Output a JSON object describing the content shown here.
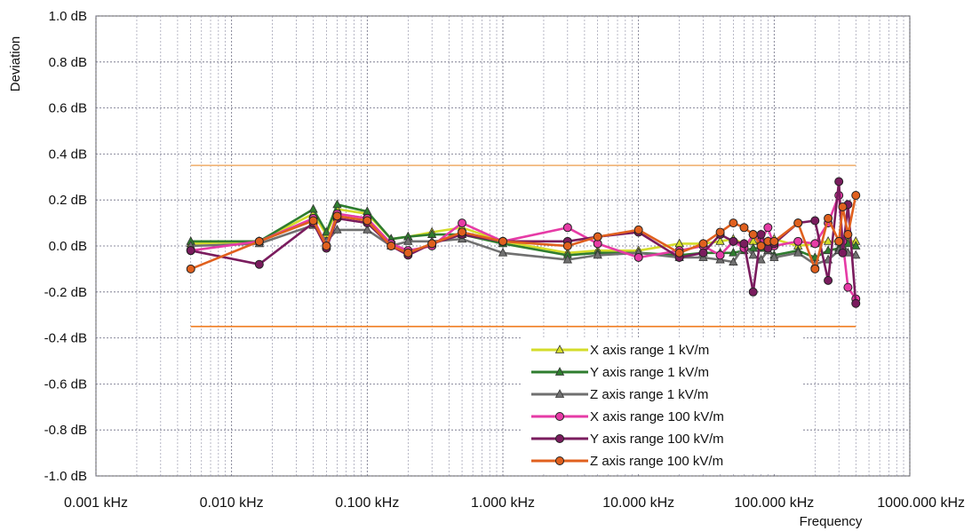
{
  "chart_data": {
    "type": "line",
    "title": "",
    "xlabel": "Frequency",
    "ylabel": "Deviation",
    "x_scale": "log",
    "xlim": [
      0.001,
      1000
    ],
    "ylim": [
      -1.0,
      1.0
    ],
    "x_ticks": [
      {
        "value": 0.001,
        "label": "0.001 kHz"
      },
      {
        "value": 0.01,
        "label": "0.010 kHz"
      },
      {
        "value": 0.1,
        "label": "0.100 kHz"
      },
      {
        "value": 1,
        "label": "1.000 kHz"
      },
      {
        "value": 10,
        "label": "10.000 kHz"
      },
      {
        "value": 100,
        "label": "100.000 kHz"
      },
      {
        "value": 1000,
        "label": "1000.000 kHz"
      }
    ],
    "y_ticks": [
      {
        "value": 1.0,
        "label": "1.0 dB"
      },
      {
        "value": 0.8,
        "label": "0.8 dB"
      },
      {
        "value": 0.6,
        "label": "0.6 dB"
      },
      {
        "value": 0.4,
        "label": "0.4 dB"
      },
      {
        "value": 0.2,
        "label": "0.2 dB"
      },
      {
        "value": 0.0,
        "label": "0.0 dB"
      },
      {
        "value": -0.2,
        "label": "-0.2 dB"
      },
      {
        "value": -0.4,
        "label": "-0.4 dB"
      },
      {
        "value": -0.6,
        "label": "-0.6 dB"
      },
      {
        "value": -0.8,
        "label": "-0.8 dB"
      },
      {
        "value": -1.0,
        "label": "-1.0 dB"
      }
    ],
    "grid": true,
    "legend_position": "bottom-right",
    "limit_lines": [
      {
        "y": 0.35,
        "x": [
          0.005,
          400
        ],
        "color": "#f0b070"
      },
      {
        "y": -0.35,
        "x": [
          0.005,
          400
        ],
        "color": "#f07a1e"
      }
    ],
    "series": [
      {
        "name": "X axis range 1 kV/m",
        "color": "#d4dc2a",
        "marker": "triangle",
        "x": [
          0.005,
          0.016,
          0.04,
          0.05,
          0.06,
          0.1,
          0.15,
          0.2,
          0.3,
          0.5,
          1,
          3,
          5,
          10,
          20,
          30,
          40,
          50,
          60,
          70,
          80,
          90,
          100,
          150,
          200,
          250,
          300,
          320,
          350,
          400
        ],
        "y": [
          0.01,
          0.02,
          0.14,
          0.05,
          0.16,
          0.14,
          0.03,
          0.04,
          0.06,
          0.08,
          0.02,
          -0.03,
          -0.02,
          -0.02,
          0.01,
          0.01,
          0.02,
          0.03,
          0.01,
          0.02,
          0.0,
          0.02,
          0.03,
          0.0,
          0.01,
          0.02,
          0.02,
          0.03,
          0.02,
          0.02
        ]
      },
      {
        "name": "Y axis range 1 kV/m",
        "color": "#2f7d2f",
        "marker": "triangle",
        "x": [
          0.005,
          0.016,
          0.04,
          0.05,
          0.06,
          0.1,
          0.15,
          0.2,
          0.3,
          0.5,
          1,
          3,
          5,
          10,
          20,
          30,
          40,
          50,
          60,
          70,
          80,
          90,
          100,
          150,
          200,
          250,
          300,
          320,
          350,
          400
        ],
        "y": [
          0.02,
          0.02,
          0.16,
          0.06,
          0.18,
          0.15,
          0.03,
          0.04,
          0.05,
          0.05,
          0.01,
          -0.04,
          -0.03,
          -0.03,
          -0.04,
          -0.03,
          -0.03,
          -0.03,
          -0.02,
          -0.01,
          -0.01,
          -0.02,
          -0.04,
          -0.02,
          -0.05,
          -0.02,
          -0.01,
          0.0,
          0.01,
          0.0
        ]
      },
      {
        "name": "Z axis range 1 kV/m",
        "color": "#707070",
        "marker": "triangle",
        "x": [
          0.005,
          0.016,
          0.04,
          0.05,
          0.06,
          0.1,
          0.15,
          0.2,
          0.3,
          0.5,
          1,
          3,
          5,
          10,
          20,
          30,
          40,
          50,
          60,
          70,
          80,
          90,
          100,
          150,
          200,
          250,
          300,
          320,
          350,
          400
        ],
        "y": [
          0.0,
          0.01,
          0.09,
          0.02,
          0.07,
          0.07,
          0.0,
          0.02,
          0.02,
          0.03,
          -0.03,
          -0.06,
          -0.04,
          -0.03,
          -0.05,
          -0.05,
          -0.06,
          -0.07,
          0.0,
          -0.04,
          -0.06,
          -0.02,
          -0.05,
          -0.03,
          -0.08,
          -0.06,
          -0.02,
          -0.01,
          -0.03,
          -0.04
        ]
      },
      {
        "name": "X axis range 100 kV/m",
        "color": "#e63ba6",
        "marker": "circle",
        "x": [
          0.005,
          0.016,
          0.04,
          0.05,
          0.06,
          0.1,
          0.15,
          0.2,
          0.3,
          0.5,
          1,
          3,
          5,
          10,
          20,
          30,
          40,
          50,
          60,
          70,
          80,
          90,
          100,
          150,
          200,
          250,
          300,
          320,
          350,
          400
        ],
        "y": [
          -0.02,
          0.02,
          0.12,
          0.0,
          0.14,
          0.12,
          0.01,
          -0.02,
          0.0,
          0.1,
          0.02,
          0.08,
          0.01,
          -0.05,
          -0.02,
          0.0,
          -0.04,
          0.02,
          -0.01,
          0.05,
          0.02,
          0.08,
          0.0,
          0.02,
          0.01,
          0.1,
          0.22,
          0.02,
          -0.18,
          -0.23
        ]
      },
      {
        "name": "Y axis range 100 kV/m",
        "color": "#7a1c5e",
        "marker": "circle",
        "x": [
          0.005,
          0.016,
          0.04,
          0.05,
          0.06,
          0.1,
          0.15,
          0.2,
          0.3,
          0.5,
          1,
          3,
          5,
          10,
          20,
          30,
          40,
          50,
          60,
          70,
          80,
          90,
          100,
          150,
          200,
          250,
          300,
          320,
          350,
          400
        ],
        "y": [
          -0.02,
          -0.08,
          0.1,
          -0.01,
          0.12,
          0.1,
          0.0,
          -0.04,
          0.01,
          0.05,
          0.02,
          0.02,
          0.04,
          0.06,
          -0.05,
          -0.03,
          0.05,
          0.02,
          0.01,
          -0.2,
          0.05,
          -0.01,
          0.01,
          0.1,
          0.11,
          -0.15,
          0.28,
          -0.03,
          0.18,
          -0.25
        ]
      },
      {
        "name": "Z axis range 100 kV/m",
        "color": "#e0601e",
        "marker": "circle",
        "x": [
          0.005,
          0.016,
          0.04,
          0.05,
          0.06,
          0.1,
          0.15,
          0.2,
          0.3,
          0.5,
          1,
          3,
          5,
          10,
          20,
          30,
          40,
          50,
          60,
          70,
          80,
          90,
          100,
          150,
          200,
          250,
          300,
          320,
          350,
          400
        ],
        "y": [
          -0.1,
          0.02,
          0.11,
          0.0,
          0.13,
          0.11,
          0.0,
          -0.03,
          0.01,
          0.06,
          0.02,
          0.0,
          0.04,
          0.07,
          -0.03,
          0.01,
          0.06,
          0.1,
          0.08,
          0.05,
          0.0,
          0.02,
          0.02,
          0.1,
          -0.1,
          0.12,
          0.02,
          0.17,
          0.05,
          0.22
        ]
      }
    ]
  }
}
